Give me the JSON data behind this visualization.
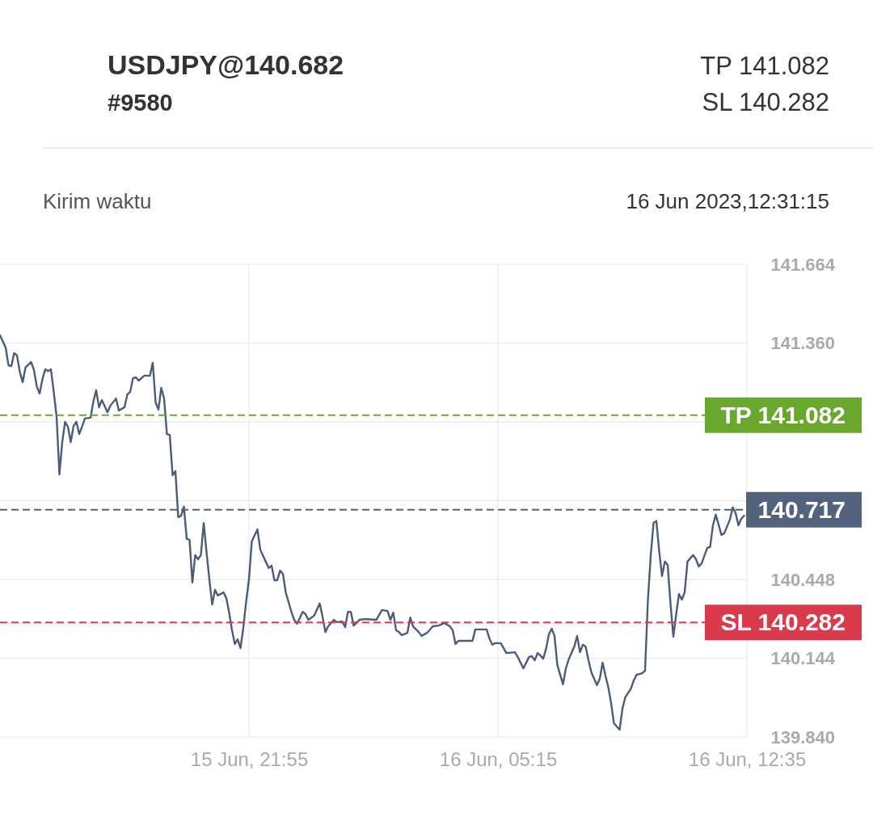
{
  "chart_data": {
    "type": "line",
    "title": "USDJPY@140.682",
    "subtitle": "#9580",
    "annotations": [
      "TP 141.082",
      "SL 140.282",
      "Kirim waktu",
      "16 Jun 2023,12:31:15"
    ],
    "x": [
      "2023-06-15T14:35",
      "2023-06-15T14:45",
      "2023-06-15T14:50",
      "2023-06-15T14:55",
      "2023-06-15T15:00",
      "2023-06-15T15:05",
      "2023-06-15T15:10",
      "2023-06-15T15:15",
      "2023-06-15T15:20",
      "2023-06-15T15:30",
      "2023-06-15T15:35",
      "2023-06-15T15:40",
      "2023-06-15T15:45",
      "2023-06-15T15:50",
      "2023-06-15T15:55",
      "2023-06-15T16:00",
      "2023-06-15T16:05",
      "2023-06-15T16:10",
      "2023-06-15T16:15",
      "2023-06-15T16:20",
      "2023-06-15T16:25",
      "2023-06-15T16:30",
      "2023-06-15T16:35",
      "2023-06-15T16:40",
      "2023-06-15T16:45",
      "2023-06-15T16:50",
      "2023-06-15T16:55",
      "2023-06-15T17:00",
      "2023-06-15T17:05",
      "2023-06-15T17:15",
      "2023-06-15T17:20",
      "2023-06-15T17:25",
      "2023-06-15T17:30",
      "2023-06-15T17:35",
      "2023-06-15T17:45",
      "2023-06-15T17:50",
      "2023-06-15T18:00",
      "2023-06-15T18:05",
      "2023-06-15T18:15",
      "2023-06-15T18:20",
      "2023-06-15T18:25",
      "2023-06-15T18:30",
      "2023-06-15T18:35",
      "2023-06-15T18:40",
      "2023-06-15T18:50",
      "2023-06-15T19:00",
      "2023-06-15T19:05",
      "2023-06-15T19:10",
      "2023-06-15T19:15",
      "2023-06-15T19:20",
      "2023-06-15T19:25",
      "2023-06-15T19:30",
      "2023-06-15T19:35",
      "2023-06-15T19:40",
      "2023-06-15T19:45",
      "2023-06-15T19:50",
      "2023-06-15T19:55",
      "2023-06-15T20:00",
      "2023-06-15T20:05",
      "2023-06-15T20:10",
      "2023-06-15T20:15",
      "2023-06-15T20:20",
      "2023-06-15T20:25",
      "2023-06-15T20:30",
      "2023-06-15T20:35",
      "2023-06-15T20:40",
      "2023-06-15T20:45",
      "2023-06-15T20:50",
      "2023-06-15T20:55",
      "2023-06-15T21:00",
      "2023-06-15T21:10",
      "2023-06-15T21:15",
      "2023-06-15T21:20",
      "2023-06-15T21:25",
      "2023-06-15T21:30",
      "2023-06-15T21:35",
      "2023-06-15T21:40",
      "2023-06-15T21:45",
      "2023-06-15T21:50",
      "2023-06-15T21:55",
      "2023-06-15T22:00",
      "2023-06-15T22:10",
      "2023-06-15T22:15",
      "2023-06-15T22:20",
      "2023-06-15T22:30",
      "2023-06-15T22:35",
      "2023-06-15T22:40",
      "2023-06-15T22:45",
      "2023-06-15T22:50",
      "2023-06-15T22:55",
      "2023-06-15T23:00",
      "2023-06-15T23:10",
      "2023-06-15T23:15",
      "2023-06-15T23:20",
      "2023-06-15T23:30",
      "2023-06-15T23:35",
      "2023-06-15T23:40",
      "2023-06-15T23:50",
      "2023-06-16T00:00",
      "2023-06-16T00:05",
      "2023-06-16T00:10",
      "2023-06-16T00:15",
      "2023-06-16T00:25",
      "2023-06-16T00:30",
      "2023-06-16T00:40",
      "2023-06-16T00:45",
      "2023-06-16T00:50",
      "2023-06-16T00:55",
      "2023-06-16T01:00",
      "2023-06-16T01:10",
      "2023-06-16T01:20",
      "2023-06-16T01:40",
      "2023-06-16T01:50",
      "2023-06-16T02:00",
      "2023-06-16T02:05",
      "2023-06-16T02:10",
      "2023-06-16T02:15",
      "2023-06-16T02:20",
      "2023-06-16T02:25",
      "2023-06-16T02:35",
      "2023-06-16T02:40",
      "2023-06-16T02:45",
      "2023-06-16T02:55",
      "2023-06-16T03:00",
      "2023-06-16T03:10",
      "2023-06-16T03:20",
      "2023-06-16T03:30",
      "2023-06-16T03:40",
      "2023-06-16T03:50",
      "2023-06-16T03:55",
      "2023-06-16T04:00",
      "2023-06-16T04:05",
      "2023-06-16T04:30",
      "2023-06-16T04:35",
      "2023-06-16T04:55",
      "2023-06-16T05:00",
      "2023-06-16T05:05",
      "2023-06-16T05:10",
      "2023-06-16T05:20",
      "2023-06-16T05:30",
      "2023-06-16T05:45",
      "2023-06-16T05:50",
      "2023-06-16T06:00",
      "2023-06-16T06:10",
      "2023-06-16T06:15",
      "2023-06-16T06:20",
      "2023-06-16T06:25",
      "2023-06-16T06:30",
      "2023-06-16T06:35",
      "2023-06-16T06:40",
      "2023-06-16T06:45",
      "2023-06-16T06:50",
      "2023-06-16T06:55",
      "2023-06-16T07:00",
      "2023-06-16T07:10",
      "2023-06-16T07:15",
      "2023-06-16T07:20",
      "2023-06-16T07:30",
      "2023-06-16T07:35",
      "2023-06-16T07:40",
      "2023-06-16T07:45",
      "2023-06-16T07:50",
      "2023-06-16T07:55",
      "2023-06-16T08:00",
      "2023-06-16T08:10",
      "2023-06-16T08:15",
      "2023-06-16T08:20",
      "2023-06-16T08:25",
      "2023-06-16T08:30",
      "2023-06-16T08:35",
      "2023-06-16T08:40",
      "2023-06-16T08:50",
      "2023-06-16T08:55",
      "2023-06-16T09:00",
      "2023-06-16T09:10",
      "2023-06-16T09:15",
      "2023-06-16T09:20",
      "2023-06-16T09:30",
      "2023-06-16T09:35",
      "2023-06-16T09:40",
      "2023-06-16T09:45",
      "2023-06-16T09:50",
      "2023-06-16T09:55",
      "2023-06-16T10:00",
      "2023-06-16T10:05",
      "2023-06-16T10:10",
      "2023-06-16T10:15",
      "2023-06-16T10:20",
      "2023-06-16T10:25",
      "2023-06-16T10:30",
      "2023-06-16T10:35",
      "2023-06-16T10:40",
      "2023-06-16T10:45",
      "2023-06-16T10:50",
      "2023-06-16T11:00",
      "2023-06-16T11:05",
      "2023-06-16T11:10",
      "2023-06-16T11:15",
      "2023-06-16T11:25",
      "2023-06-16T11:30",
      "2023-06-16T11:35",
      "2023-06-16T11:40",
      "2023-06-16T11:50",
      "2023-06-16T11:55",
      "2023-06-16T12:05",
      "2023-06-16T12:10",
      "2023-06-16T12:15",
      "2023-06-16T12:20",
      "2023-06-16T12:25",
      "2023-06-16T12:30"
    ],
    "series": [
      {
        "color": "#4d5c78",
        "values": [
          141.39,
          141.343,
          141.274,
          141.271,
          141.321,
          141.312,
          141.249,
          141.209,
          141.265,
          141.287,
          141.256,
          141.193,
          141.165,
          141.221,
          141.259,
          141.252,
          141.259,
          141.171,
          141.078,
          140.853,
          140.978,
          141.056,
          141.037,
          140.978,
          141.04,
          141.056,
          141.009,
          141.037,
          141.069,
          141.072,
          141.134,
          141.178,
          141.112,
          141.14,
          141.093,
          141.118,
          141.146,
          141.1,
          141.112,
          141.162,
          141.171,
          141.224,
          141.228,
          141.215,
          141.234,
          141.234,
          141.284,
          141.131,
          141.103,
          141.187,
          141.146,
          141.009,
          141.006,
          140.85,
          140.866,
          140.688,
          140.694,
          140.729,
          140.604,
          140.601,
          140.436,
          140.542,
          140.526,
          140.542,
          140.666,
          140.554,
          140.448,
          140.351,
          140.408,
          140.386,
          140.398,
          140.376,
          140.32,
          140.252,
          140.199,
          140.217,
          140.183,
          140.261,
          140.361,
          140.448,
          140.595,
          140.641,
          140.563,
          140.538,
          140.492,
          140.501,
          140.445,
          140.445,
          140.482,
          140.47,
          140.398,
          140.323,
          140.292,
          140.277,
          140.323,
          140.314,
          140.292,
          140.308,
          140.355,
          140.305,
          140.245,
          140.267,
          140.292,
          140.283,
          140.286,
          140.264,
          140.323,
          140.323,
          140.27,
          140.292,
          140.295,
          140.292,
          140.33,
          140.326,
          140.292,
          140.32,
          140.252,
          140.245,
          140.233,
          140.242,
          140.301,
          140.267,
          140.245,
          140.23,
          140.242,
          140.267,
          140.27,
          140.28,
          140.267,
          140.252,
          140.199,
          140.211,
          140.211,
          140.255,
          140.255,
          140.22,
          140.196,
          140.202,
          140.202,
          140.164,
          140.167,
          140.149,
          140.105,
          140.149,
          140.152,
          140.136,
          140.164,
          140.155,
          140.142,
          140.18,
          140.236,
          140.258,
          140.23,
          140.118,
          140.043,
          140.105,
          140.139,
          140.189,
          140.23,
          140.167,
          140.196,
          140.189,
          140.136,
          140.09,
          140.04,
          140.065,
          140.127,
          140.077,
          140.033,
          139.971,
          139.893,
          139.868,
          139.949,
          139.993,
          140.027,
          140.058,
          140.08,
          140.086,
          140.096,
          140.367,
          140.538,
          140.666,
          140.673,
          140.557,
          140.461,
          140.517,
          140.504,
          140.355,
          140.227,
          140.314,
          140.392,
          140.37,
          140.398,
          140.517,
          140.542,
          140.526,
          140.498,
          140.51,
          140.57,
          140.573,
          140.657,
          140.698,
          140.62,
          140.626,
          140.679,
          140.726,
          140.704,
          140.657,
          140.682,
          140.694
        ]
      }
    ],
    "xlim": [
      "2023-06-15T14:35",
      "2023-06-16T12:35"
    ],
    "xticks": [
      {
        "value": "2023-06-15T21:55",
        "label": "15 Jun, 21:55"
      },
      {
        "value": "2023-06-16T05:15",
        "label": "16 Jun, 05:15"
      },
      {
        "value": "2023-06-16T12:35",
        "label": "16 Jun, 12:35"
      }
    ],
    "ylim": [
      139.84,
      141.664
    ],
    "yticks": [
      141.664,
      {
        "value": 141.36,
        "label": "141.360"
      },
      {
        "value": 141.056,
        "label": null
      },
      {
        "value": 140.752,
        "label": null
      },
      140.448,
      140.144,
      {
        "value": 139.84,
        "label": "139.840"
      }
    ],
    "ref_lines": [
      {
        "axis": "y",
        "value": 141.082,
        "label": "TP 141.082",
        "color": "#6aa72f",
        "line_style": "dashed"
      },
      {
        "axis": "y",
        "value": 140.717,
        "label": "140.717",
        "color": "#53627d",
        "line_style": "dashed"
      },
      {
        "axis": "y",
        "value": 140.282,
        "label": "SL 140.282",
        "color": "#d93a4c",
        "line_style": "dashed"
      }
    ],
    "grid": true
  }
}
